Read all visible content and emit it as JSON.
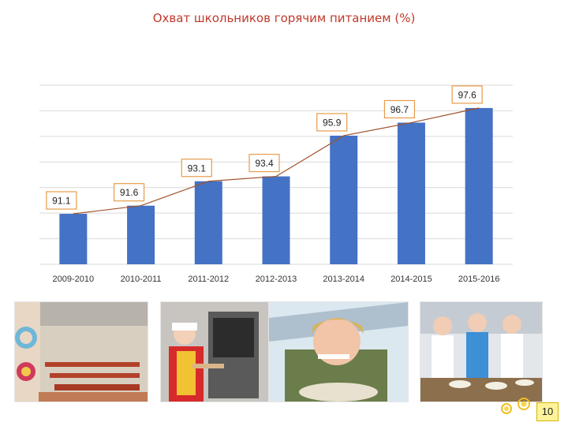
{
  "page": {
    "title": "Охват школьников горячим питанием (%)",
    "page_number": "10"
  },
  "colors": {
    "title": "#c0392b",
    "bar": "#4472c4",
    "line": "#a0522d",
    "label_border": "#e69b4a",
    "gridline": "#d9d9d9"
  },
  "icons": [
    "sun-decoration-icon",
    "cafeteria-photo",
    "kitchen-oven-photo",
    "girl-eating-photo",
    "canteen-staff-photo"
  ],
  "chart_data": {
    "type": "bar",
    "title": "Охват школьников горячим питанием (%)",
    "categories": [
      "2009-2010",
      "2010-2011",
      "2011-2012",
      "2012-2013",
      "2013-2014",
      "2014-2015",
      "2015-2016"
    ],
    "values": [
      91.1,
      91.6,
      93.1,
      93.4,
      95.9,
      96.7,
      97.6
    ],
    "value_labels": [
      "91.1",
      "91.6",
      "93.1",
      "93.4",
      "95.9",
      "96.7",
      "97.6"
    ],
    "overlay_line": true,
    "xlabel": "",
    "ylabel": "",
    "ylim": [
      88,
      99
    ],
    "grid": true,
    "legend": "none"
  }
}
